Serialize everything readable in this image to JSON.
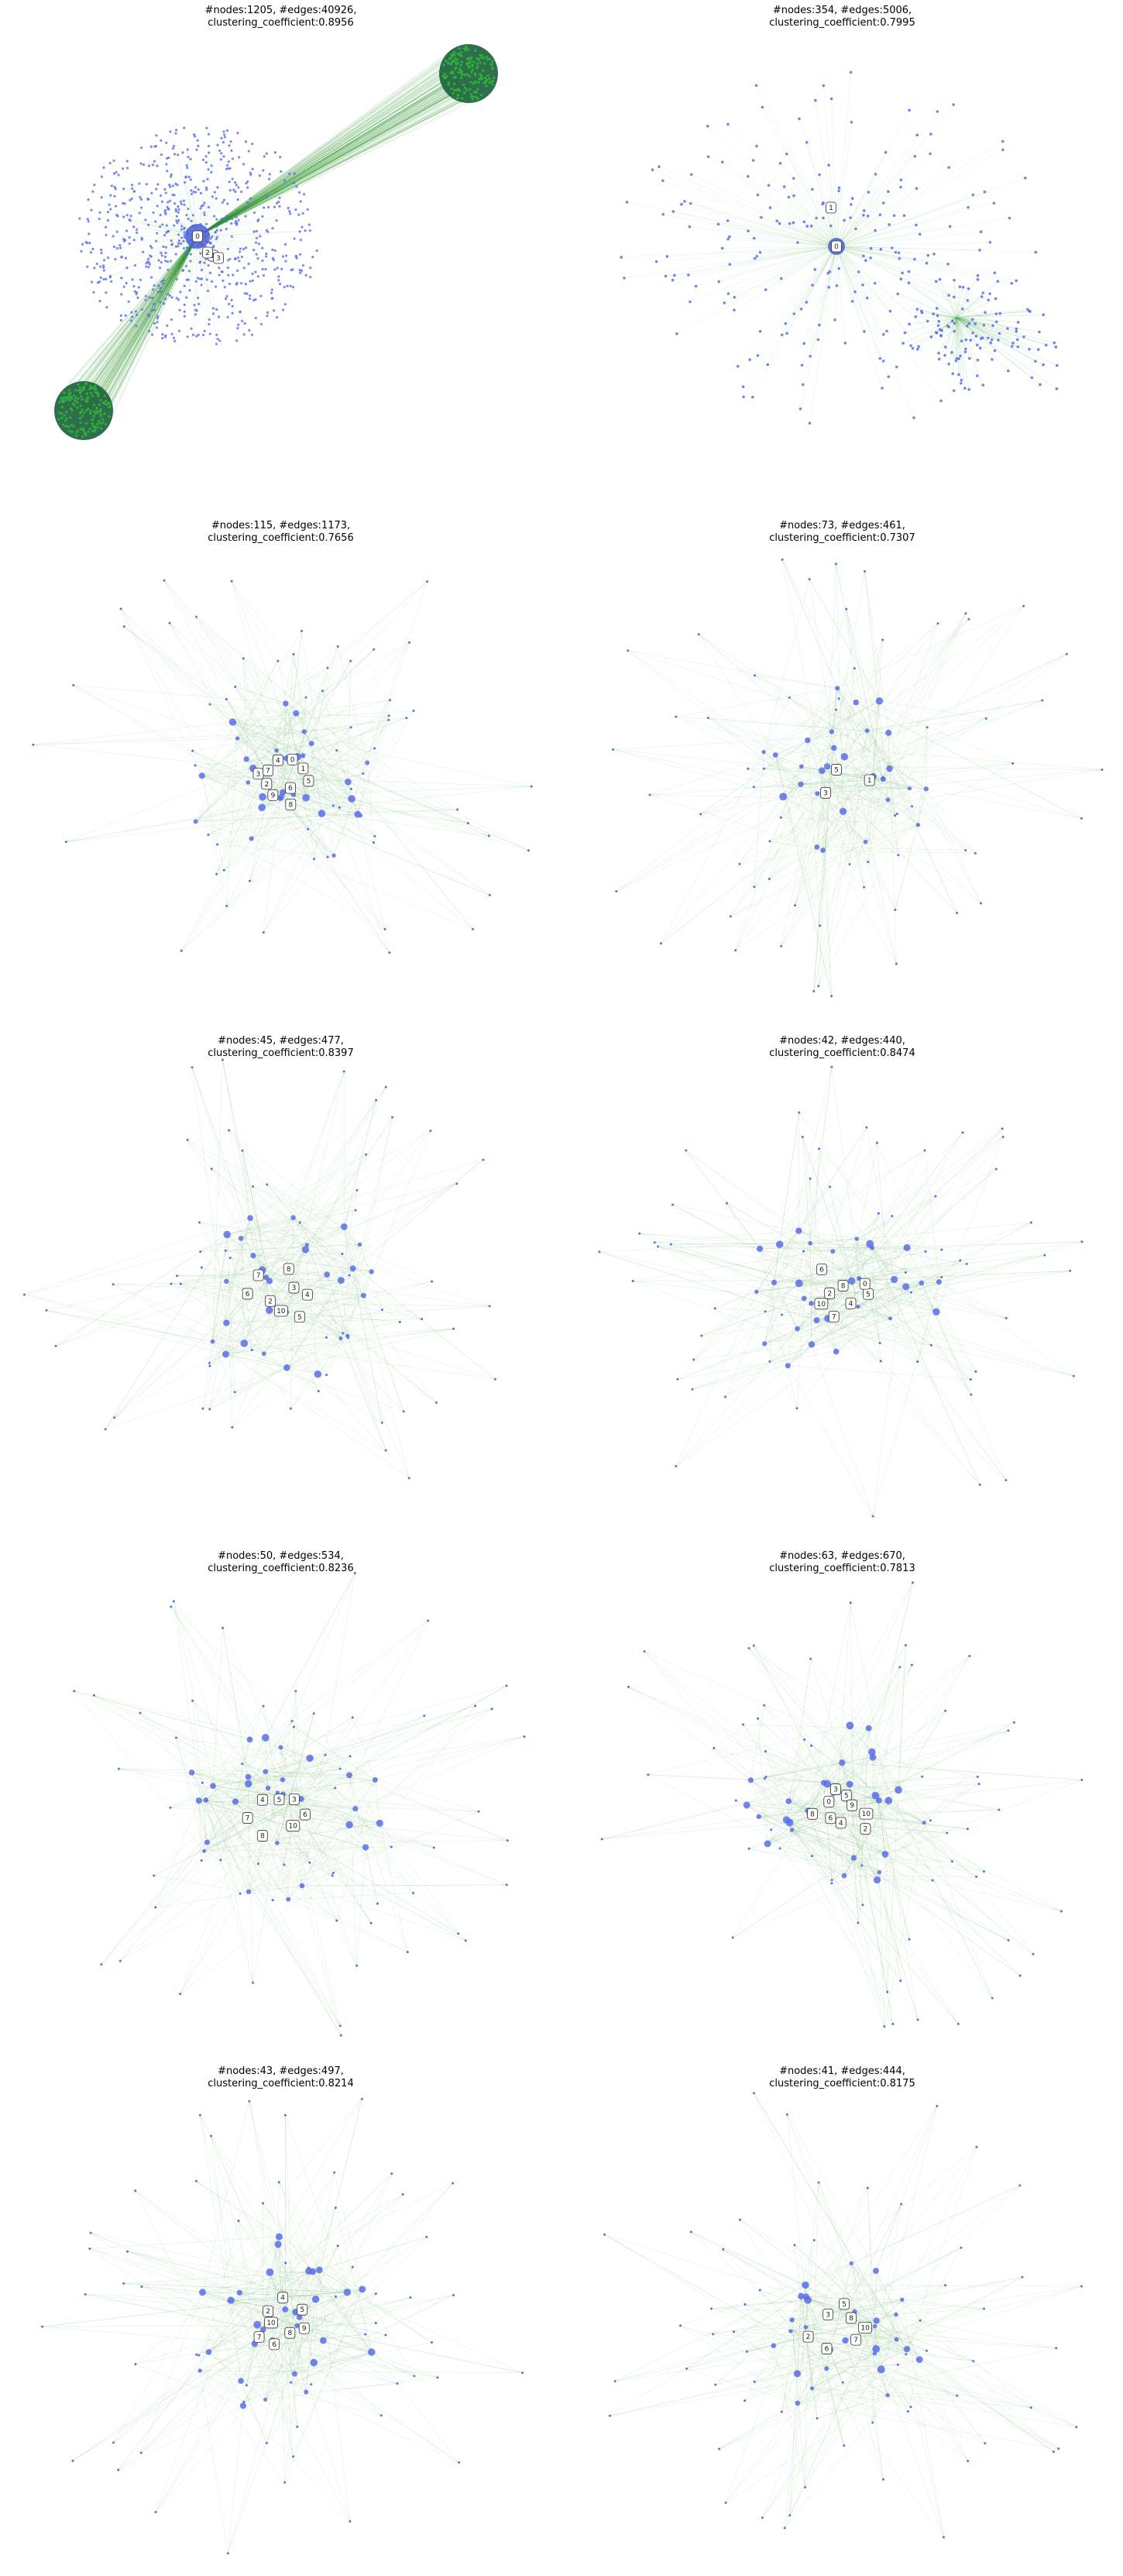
{
  "colors": {
    "node": "#5a6ee8",
    "hub_node": "#4a5fd6",
    "edge": "#7fbf7f",
    "dense_edge": "#1f8f1f",
    "cluster_node": "#1a5f3a",
    "background": "#ffffff"
  },
  "panels": [
    {
      "title_line1": "#nodes:1205, #edges:40926,",
      "title_line2": "clustering_coefficient:0.8956",
      "labels": [
        "0",
        "1",
        "2",
        "3"
      ],
      "style": "hub-with-clusters"
    },
    {
      "title_line1": "#nodes:354, #edges:5006,",
      "title_line2": "clustering_coefficient:0.7995",
      "labels": [
        "0",
        "1"
      ],
      "style": "hub-with-dense-region"
    },
    {
      "title_line1": "#nodes:115, #edges:1173,",
      "title_line2": "clustering_coefficient:0.7656",
      "labels": [
        "5",
        "6",
        "8",
        "9",
        "2",
        "3",
        "7",
        "4",
        "0",
        "1"
      ],
      "style": "star"
    },
    {
      "title_line1": "#nodes:73, #edges:461,",
      "title_line2": "clustering_coefficient:0.7307",
      "labels": [
        "1",
        "3",
        "5"
      ],
      "style": "star"
    },
    {
      "title_line1": "#nodes:45, #edges:477,",
      "title_line2": "clustering_coefficient:0.8397",
      "labels": [
        "4",
        "5",
        "10",
        "2",
        "6",
        "7",
        "8",
        "3"
      ],
      "style": "star"
    },
    {
      "title_line1": "#nodes:42, #edges:440,",
      "title_line2": "clustering_coefficient:0.8474",
      "labels": [
        "5",
        "4",
        "7",
        "10",
        "2",
        "6",
        "8",
        "0"
      ],
      "style": "star"
    },
    {
      "title_line1": "#nodes:50, #edges:534,",
      "title_line2": "clustering_coefficient:0.8236",
      "labels": [
        "6",
        "10",
        "8",
        "7",
        "4",
        "5",
        "3"
      ],
      "style": "star"
    },
    {
      "title_line1": "#nodes:63, #edges:670,",
      "title_line2": "clustering_coefficient:0.7813",
      "labels": [
        "10",
        "2",
        "4",
        "6",
        "8",
        "0",
        "3",
        "5",
        "9"
      ],
      "style": "star"
    },
    {
      "title_line1": "#nodes:43, #edges:497,",
      "title_line2": "clustering_coefficient:0.8214",
      "labels": [
        "9",
        "8",
        "6",
        "7",
        "10",
        "2",
        "4",
        "5"
      ],
      "style": "star"
    },
    {
      "title_line1": "#nodes:41, #edges:444,",
      "title_line2": "clustering_coefficient:0.8175",
      "labels": [
        "10",
        "7",
        "6",
        "2",
        "3",
        "5",
        "8"
      ],
      "style": "star"
    }
  ]
}
